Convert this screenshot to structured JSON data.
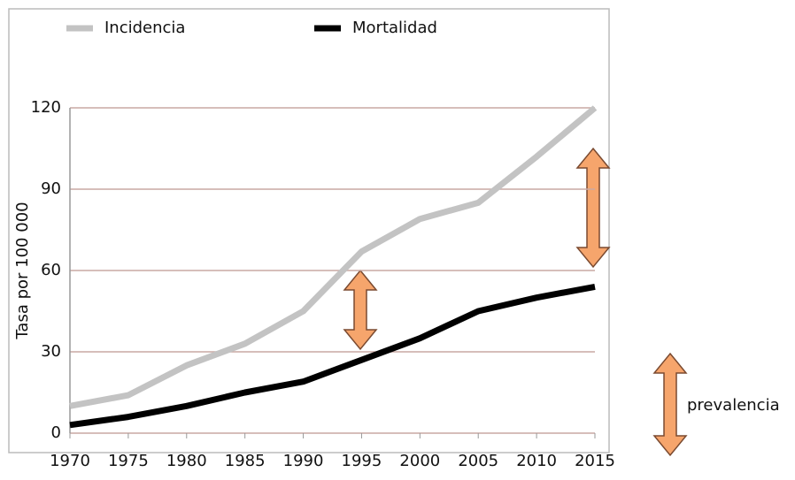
{
  "chart_data": {
    "type": "line",
    "y_label": "Tasa por 100 000",
    "annotation": "prevalencia",
    "x": [
      1970,
      1975,
      1980,
      1985,
      1990,
      1995,
      2000,
      2005,
      2010,
      2015
    ],
    "xlim": [
      1970,
      2015
    ],
    "xticks": [
      1970,
      1975,
      1980,
      1985,
      1990,
      1995,
      2000,
      2005,
      2010,
      2015
    ],
    "ylim": [
      0,
      120
    ],
    "yticks": [
      0,
      30,
      60,
      90,
      120
    ],
    "grid": true,
    "legend": "top",
    "series": [
      {
        "name": "Incidencia",
        "color": "#c3c3c3",
        "values": [
          10,
          14,
          25,
          33,
          45,
          67,
          79,
          85,
          102,
          120
        ]
      },
      {
        "name": "Mortalidad",
        "color": "#000000",
        "values": [
          3,
          6,
          10,
          15,
          19,
          27,
          35,
          45,
          50,
          54
        ]
      }
    ]
  }
}
